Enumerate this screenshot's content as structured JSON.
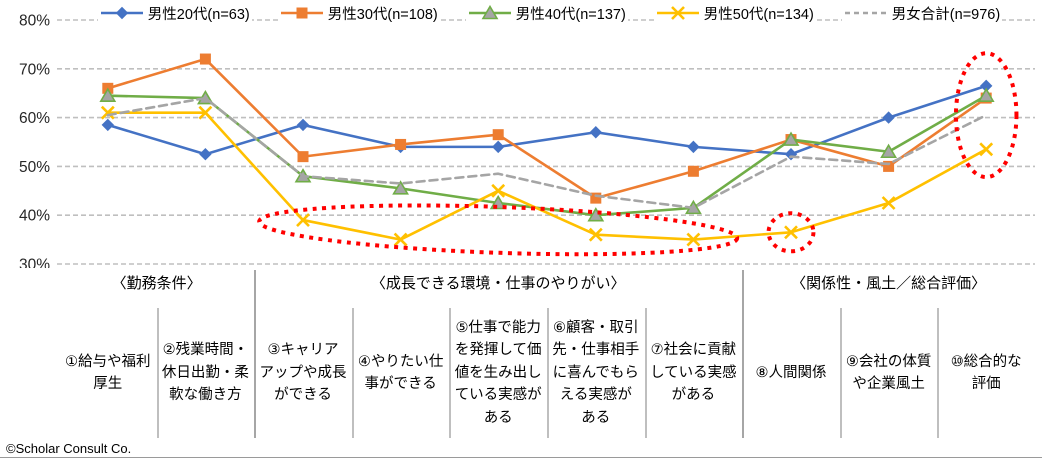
{
  "footer": {
    "copyright": "©Scholar Consult Co."
  },
  "chart_data": {
    "type": "line",
    "title": "",
    "xlabel": "",
    "ylabel": "",
    "y_axis": {
      "min": 30,
      "max": 80,
      "step": 10,
      "unit": "%",
      "grid": "dashed"
    },
    "legend_position": "top",
    "groups": [
      {
        "label": "〈勤務条件〉",
        "from": 0,
        "to": 1
      },
      {
        "label": "〈成長できる環境・仕事のやりがい〉",
        "from": 2,
        "to": 6
      },
      {
        "label": "〈関係性・風土／総合評価〉",
        "from": 7,
        "to": 9
      }
    ],
    "categories": [
      "①給与や福利\n厚生",
      "②残業時間・\n休日出勤・柔\n軟な働き方",
      "③キャリア\nアップや成長\nができる",
      "④やりたい仕\n事ができる",
      "⑤仕事で能力\nを発揮して価\n値を生み出し\nている実感が\nある",
      "⑥顧客・取引\n先・仕事相手\nに喜んでもら\nえる実感が\nある",
      "⑦社会に貢献\nしている実感\nがある",
      "⑧人間関係",
      "⑨会社の体質\nや企業風土",
      "⑩総合的な\n評価"
    ],
    "series": [
      {
        "name": "男性20代(n=63)",
        "color": "#4472C4",
        "marker": "diamond",
        "marker_fill": "#4472C4",
        "line": "solid",
        "values": [
          58.5,
          52.5,
          58.5,
          54,
          54,
          57,
          54,
          52.5,
          60,
          66.5
        ]
      },
      {
        "name": "男性30代(n=108)",
        "color": "#ED7D31",
        "marker": "square",
        "marker_fill": "#ED7D31",
        "line": "solid",
        "values": [
          66,
          72,
          52,
          54.5,
          56.5,
          43.5,
          49,
          55.5,
          50,
          64
        ]
      },
      {
        "name": "男性40代(n=137)",
        "color": "#70AD47",
        "marker": "triangle",
        "marker_fill": "#A5A5A5",
        "line": "solid",
        "values": [
          64.5,
          64,
          48,
          45.5,
          42.5,
          40,
          41.5,
          55.5,
          53,
          64.5
        ]
      },
      {
        "name": "男性50代(n=134)",
        "color": "#FFC000",
        "marker": "x",
        "marker_fill": "#FFC000",
        "line": "solid",
        "values": [
          61,
          61,
          39,
          35,
          45,
          36,
          35,
          36.5,
          42.5,
          53.5
        ]
      },
      {
        "name": "男女合計(n=976)",
        "color": "#A5A5A5",
        "marker": "none",
        "marker_fill": "#A5A5A5",
        "line": "dashed",
        "values": [
          60.5,
          64,
          48,
          46.5,
          48.5,
          44,
          41.5,
          52,
          50.5,
          60.5
        ]
      }
    ],
    "annotations": [
      {
        "shape": "ellipse",
        "color": "#FF0000",
        "style": "dotted",
        "x_center": 4.0,
        "y_center": 37.0,
        "x_radius": 2.45,
        "y_radius": 4.7,
        "rotate_deg": 2
      },
      {
        "shape": "ellipse",
        "color": "#FF0000",
        "style": "dotted",
        "x_center": 7.0,
        "y_center": 36.5,
        "x_radius": 0.23,
        "y_radius": 3.9,
        "rotate_deg": 0
      },
      {
        "shape": "ellipse",
        "color": "#FF0000",
        "style": "dotted",
        "x_center": 9.0,
        "y_center": 60.5,
        "x_radius": 0.31,
        "y_radius": 12.7,
        "rotate_deg": 0
      }
    ]
  }
}
